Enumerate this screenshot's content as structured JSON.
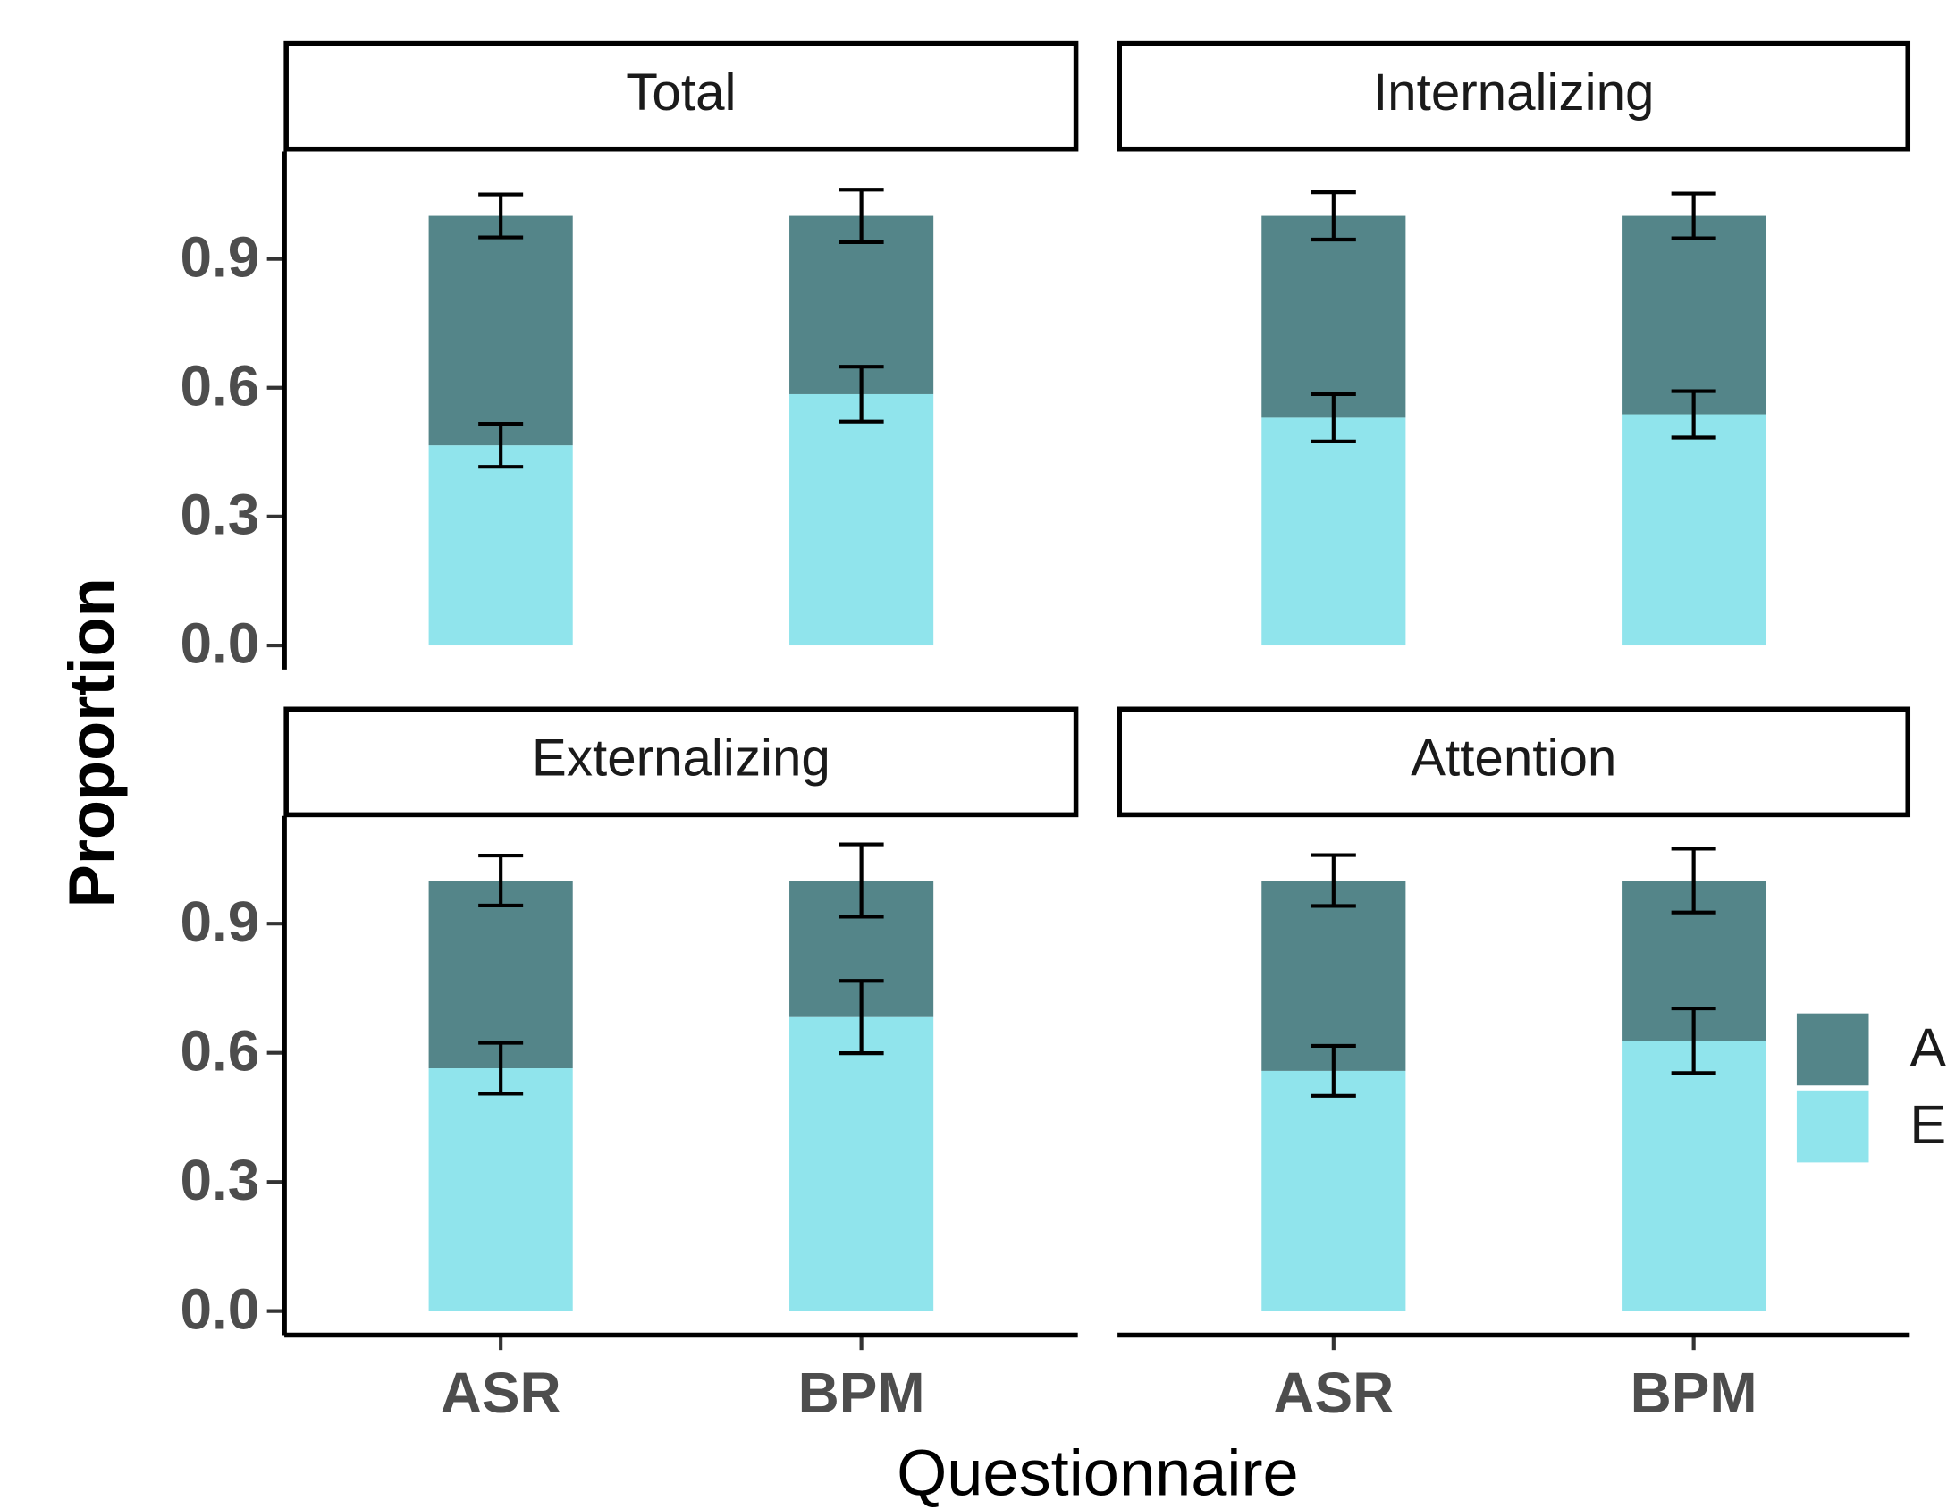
{
  "axes": {
    "xlabel": "Questionnaire",
    "ylabel": "Proportion"
  },
  "chart_data": [
    {
      "type": "bar",
      "title": "Total",
      "stacked": true,
      "categories": [
        null,
        null
      ],
      "ylim": [
        -0.05,
        1.15
      ],
      "yticks": [
        {
          "value": 0,
          "label": "0.0"
        },
        {
          "value": 0.3,
          "label": "0.3"
        },
        {
          "value": 0.6,
          "label": "0.6"
        },
        {
          "value": 0.9,
          "label": "0.9"
        }
      ],
      "series": [
        {
          "name": "E",
          "color": "#90e4ec",
          "values": [
            0.466,
            0.585
          ],
          "errors": [
            0.05,
            0.064
          ]
        },
        {
          "name": "A",
          "color": "#548589",
          "values": [
            0.534,
            0.415
          ],
          "errors": [
            0.05,
            0.061
          ]
        }
      ]
    },
    {
      "type": "bar",
      "title": "Internalizing",
      "stacked": true,
      "categories": [
        null,
        null
      ],
      "ylim": [
        -0.05,
        1.15
      ],
      "series": [
        {
          "name": "E",
          "color": "#90e4ec",
          "values": [
            0.53,
            0.538
          ],
          "errors": [
            0.055,
            0.054
          ]
        },
        {
          "name": "A",
          "color": "#548589",
          "values": [
            0.47,
            0.462
          ],
          "errors": [
            0.055,
            0.052
          ]
        }
      ]
    },
    {
      "type": "bar",
      "title": "Externalizing",
      "stacked": true,
      "categories": [
        "ASR",
        "BPM"
      ],
      "ylim": [
        -0.05,
        1.15
      ],
      "yticks": [
        {
          "value": 0,
          "label": "0.0"
        },
        {
          "value": 0.3,
          "label": "0.3"
        },
        {
          "value": 0.6,
          "label": "0.6"
        },
        {
          "value": 0.9,
          "label": "0.9"
        }
      ],
      "series": [
        {
          "name": "E",
          "color": "#90e4ec",
          "values": [
            0.564,
            0.683
          ],
          "errors": [
            0.059,
            0.084
          ]
        },
        {
          "name": "A",
          "color": "#548589",
          "values": [
            0.436,
            0.317
          ],
          "errors": [
            0.058,
            0.084
          ]
        }
      ]
    },
    {
      "type": "bar",
      "title": "Attention",
      "stacked": true,
      "categories": [
        "ASR",
        "BPM"
      ],
      "ylim": [
        -0.05,
        1.15
      ],
      "series": [
        {
          "name": "E",
          "color": "#90e4ec",
          "values": [
            0.558,
            0.628
          ],
          "errors": [
            0.058,
            0.075
          ]
        },
        {
          "name": "A",
          "color": "#548589",
          "values": [
            0.442,
            0.372
          ],
          "errors": [
            0.059,
            0.074
          ]
        }
      ]
    }
  ]
}
